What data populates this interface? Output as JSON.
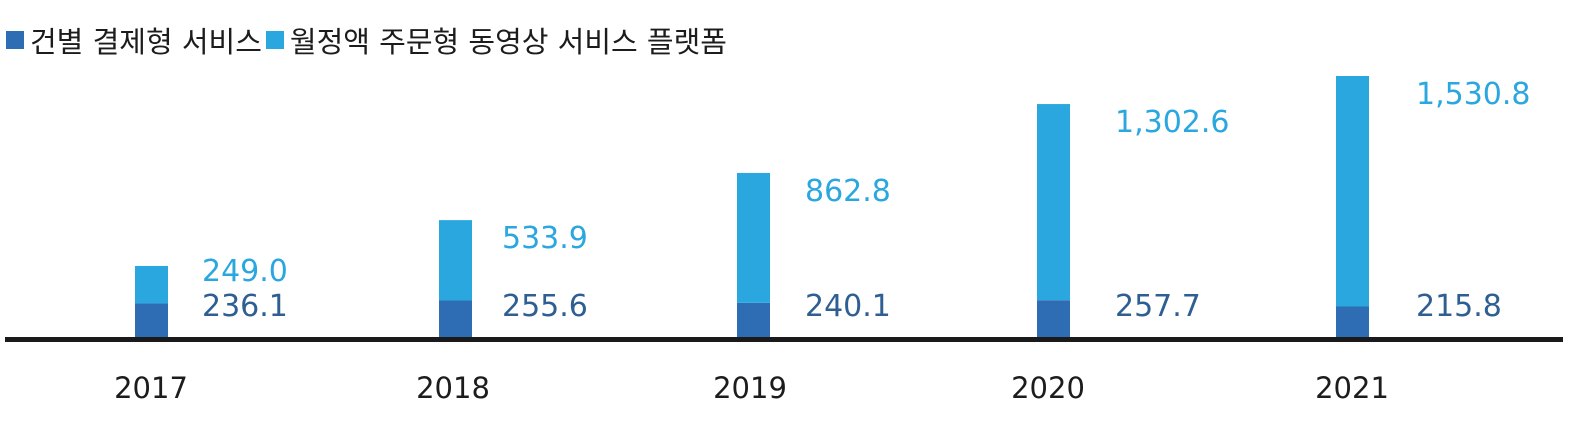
{
  "legend": {
    "series0": "건별 결제형 서비스",
    "series1": "월정액 주문형 동영상 서비스 플랫폼"
  },
  "colors": {
    "series0": "#2e6db4",
    "series1": "#2aa7df",
    "axis": "#1a1a1a"
  },
  "chart_data": {
    "type": "bar",
    "stacked": true,
    "categories": [
      "2017",
      "2018",
      "2019",
      "2020",
      "2021"
    ],
    "series": [
      {
        "name": "건별 결제형 서비스",
        "values": [
          236.1,
          255.6,
          240.1,
          257.7,
          215.8
        ]
      },
      {
        "name": "월정액 주문형 동영상 서비스 플랫폼",
        "values": [
          249.0,
          533.9,
          862.8,
          1302.6,
          1530.8
        ]
      }
    ],
    "labels": [
      {
        "bottom": "236.1",
        "top": "249.0"
      },
      {
        "bottom": "255.6",
        "top": "533.9"
      },
      {
        "bottom": "240.1",
        "top": "862.8"
      },
      {
        "bottom": "257.7",
        "top": "1,302.6"
      },
      {
        "bottom": "215.8",
        "top": "1,530.8"
      }
    ],
    "title": "",
    "xlabel": "",
    "ylabel": "",
    "grid": false,
    "legend_position": "top-left"
  }
}
